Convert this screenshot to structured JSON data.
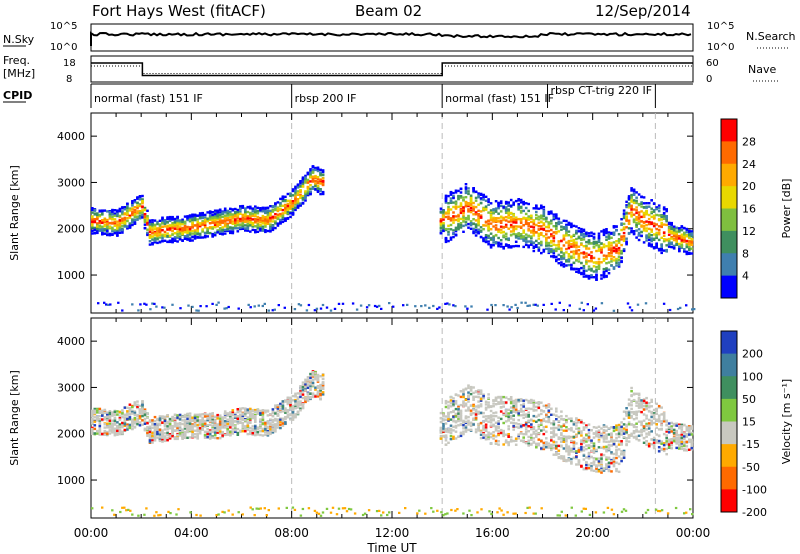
{
  "header": {
    "title": "Fort Hays West (fitACF)",
    "beam": "Beam 02",
    "date": "12/Sep/2014"
  },
  "summary": {
    "nsky_label": "N.Sky",
    "nsearch_label": "N.Search",
    "freq_label": "Freq.",
    "freq_unit": "[MHz]",
    "nave_label": "Nave",
    "cpid_label": "CPID",
    "noise_ticks_left": [
      "10^5",
      "10^0"
    ],
    "noise_ticks_right": [
      "10^5",
      "10^0"
    ],
    "freq_ticks": [
      "18",
      "8"
    ],
    "nave_ticks": [
      "60",
      "0"
    ],
    "cpid_segments": [
      {
        "label": "normal (fast) 151 IF",
        "start": 0,
        "end": 8
      },
      {
        "label": "rbsp 200 IF",
        "start": 8,
        "end": 14
      },
      {
        "label": "normal (fast) 151 IF",
        "start": 14,
        "end": 18.2
      },
      {
        "label": "rbsp CT-trig 220 IF",
        "start": 18.2,
        "end": 22.5
      }
    ],
    "freq_series": [
      [
        0,
        15.5
      ],
      [
        2.05,
        15.5
      ],
      [
        2.05,
        10.3
      ],
      [
        14,
        10.3
      ],
      [
        14,
        15.5
      ],
      [
        24,
        15.5
      ]
    ],
    "nave_series": [
      [
        0,
        14
      ],
      [
        2.05,
        14
      ],
      [
        2.05,
        9
      ],
      [
        14,
        9
      ],
      [
        14,
        14
      ],
      [
        24,
        14
      ]
    ]
  },
  "chart_data": [
    {
      "type": "heatmap",
      "name": "power",
      "ylabel": "Slant Range [km]",
      "xlabel": "Time UT",
      "ylim": [
        180,
        4500
      ],
      "y_ticks": [
        "1000",
        "2000",
        "3000",
        "4000"
      ],
      "x_ticks": [
        "00:00",
        "04:00",
        "08:00",
        "12:00",
        "16:00",
        "20:00",
        "00:00"
      ],
      "colorbar_label": "Power [dB]",
      "colorbar_ticks": [
        "28",
        "24",
        "20",
        "16",
        "12",
        "8",
        "4"
      ],
      "colorbar_colors": [
        "#ff0000",
        "#ff6a00",
        "#ffaa00",
        "#e8d800",
        "#7fbf3f",
        "#3f8f5f",
        "#3f7faf",
        "#0000ff"
      ],
      "trace": [
        [
          0,
          2200
        ],
        [
          1.0,
          2150
        ],
        [
          2.0,
          2500
        ],
        [
          2.3,
          1950
        ],
        [
          3.0,
          2000
        ],
        [
          4.0,
          2050
        ],
        [
          5.0,
          2150
        ],
        [
          6.0,
          2250
        ],
        [
          7.0,
          2200
        ],
        [
          8.0,
          2600
        ],
        [
          8.8,
          3100
        ],
        [
          13.9,
          2200
        ],
        [
          14.5,
          2350
        ],
        [
          15.0,
          2500
        ],
        [
          16.0,
          2100
        ],
        [
          17.0,
          2150
        ],
        [
          18.0,
          2000
        ],
        [
          19.0,
          1650
        ],
        [
          20.0,
          1400
        ],
        [
          21.0,
          1600
        ],
        [
          21.5,
          2450
        ],
        [
          22.0,
          2200
        ],
        [
          22.5,
          2100
        ],
        [
          23.0,
          1900
        ],
        [
          24.0,
          1700
        ]
      ]
    },
    {
      "type": "heatmap",
      "name": "velocity",
      "ylabel": "Slant Range [km]",
      "xlabel": "Time UT",
      "ylim": [
        180,
        4500
      ],
      "y_ticks": [
        "1000",
        "2000",
        "3000",
        "4000"
      ],
      "x_ticks": [
        "00:00",
        "04:00",
        "08:00",
        "12:00",
        "16:00",
        "20:00",
        "00:00"
      ],
      "colorbar_label": "Velocity [m s⁻¹]",
      "colorbar_ticks": [
        "200",
        "100",
        "50",
        "15",
        "-15",
        "-50",
        "-100",
        "-200"
      ],
      "colorbar_colors": [
        "#2040c0",
        "#3f7f9f",
        "#3f8f5f",
        "#7fc83f",
        "#c8c8c0",
        "#ffaa00",
        "#ff6a00",
        "#ff0000"
      ],
      "trace": [
        [
          0,
          2300
        ],
        [
          1.0,
          2250
        ],
        [
          2.0,
          2500
        ],
        [
          2.3,
          2100
        ],
        [
          3.0,
          2150
        ],
        [
          4.0,
          2200
        ],
        [
          5.0,
          2200
        ],
        [
          6.0,
          2300
        ],
        [
          7.0,
          2250
        ],
        [
          8.0,
          2600
        ],
        [
          8.8,
          3100
        ],
        [
          13.9,
          2200
        ],
        [
          14.5,
          2400
        ],
        [
          15.0,
          2600
        ],
        [
          16.0,
          2300
        ],
        [
          17.0,
          2300
        ],
        [
          18.0,
          2200
        ],
        [
          19.0,
          1900
        ],
        [
          20.0,
          1700
        ],
        [
          21.0,
          1700
        ],
        [
          21.5,
          2500
        ],
        [
          22.0,
          2300
        ],
        [
          22.5,
          2200
        ],
        [
          23.0,
          2000
        ],
        [
          24.0,
          1900
        ]
      ]
    }
  ]
}
